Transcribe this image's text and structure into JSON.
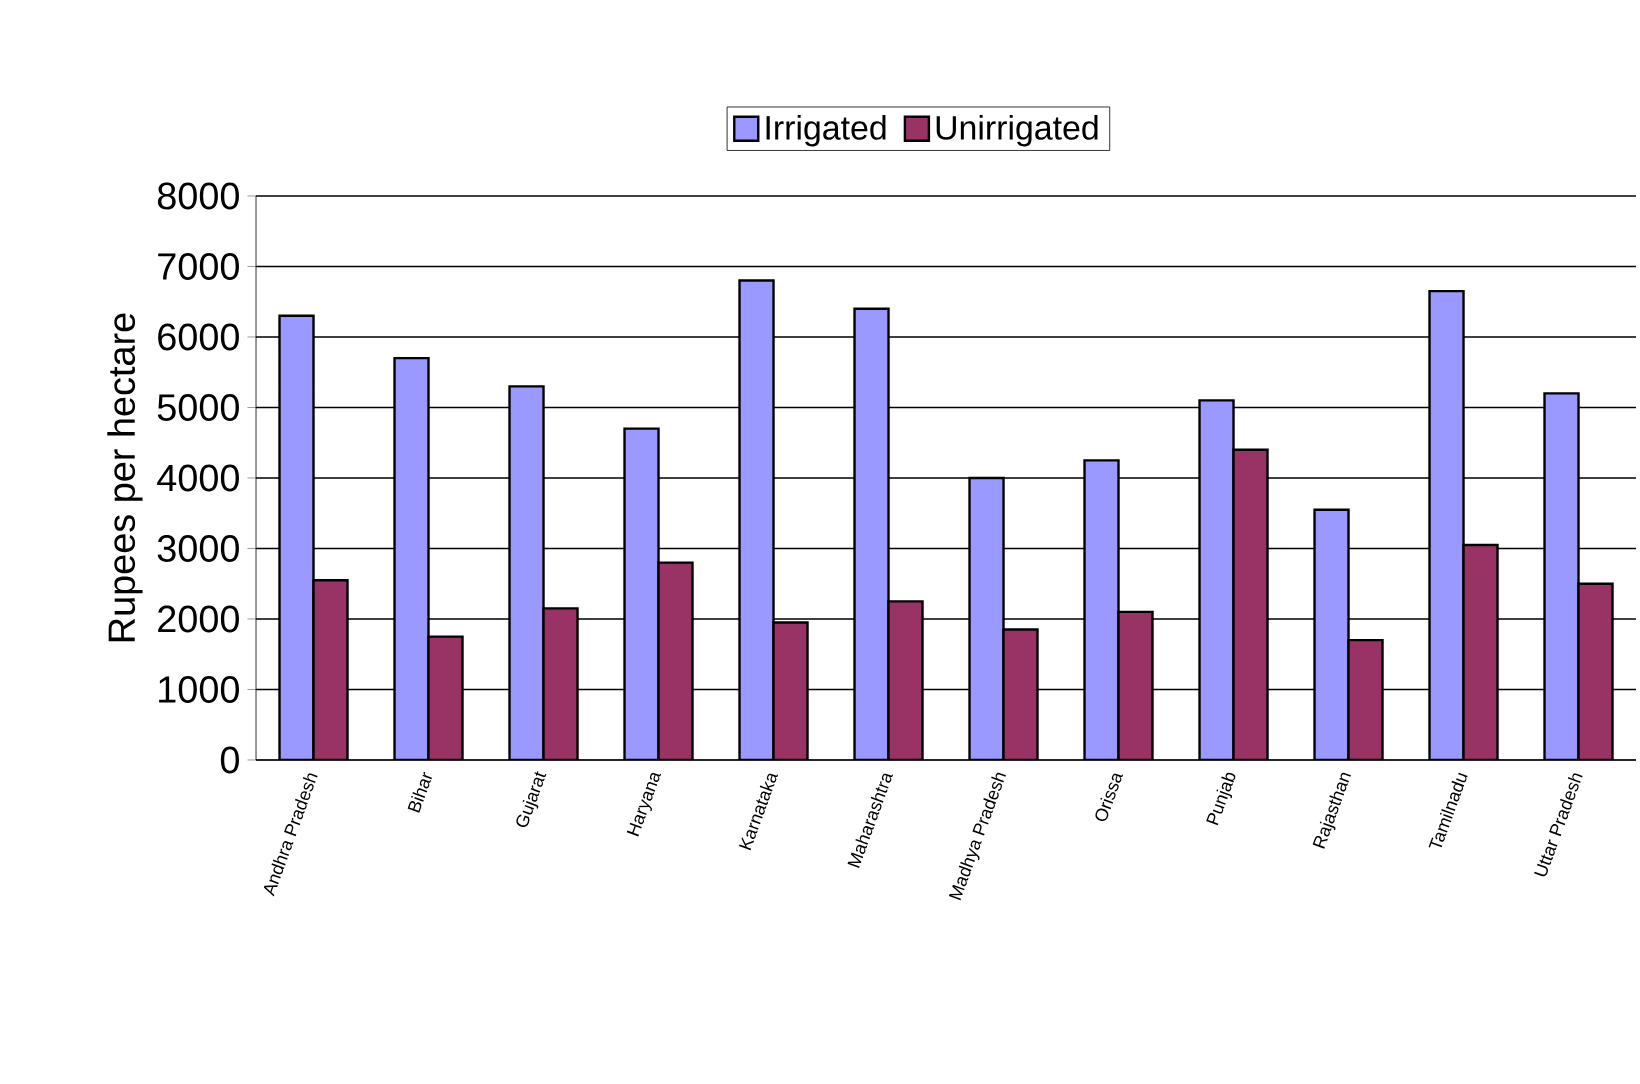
{
  "chart_data": {
    "type": "bar",
    "ylabel": "Rupees per hectare",
    "categories": [
      "Andhra Pradesh",
      "Bihar",
      "Gujarat",
      "Haryana",
      "Karnataka",
      "Maharashtra",
      "Madhya Pradesh",
      "Orissa",
      "Punjab",
      "Rajasthan",
      "Tamilnadu",
      "Uttar Pradesh"
    ],
    "series": [
      {
        "name": "Irrigated",
        "color": "#9999ff",
        "values": [
          6300,
          5700,
          5300,
          4700,
          6800,
          6400,
          4000,
          4250,
          5100,
          3550,
          6650,
          5200
        ]
      },
      {
        "name": "Unirrigated",
        "color": "#993366",
        "values": [
          2550,
          1750,
          2150,
          2800,
          1950,
          2250,
          1850,
          2100,
          4400,
          1700,
          3050,
          2500
        ]
      }
    ],
    "ylim": [
      0,
      8000
    ],
    "yticks": [
      0,
      1000,
      2000,
      3000,
      4000,
      5000,
      6000,
      7000,
      8000
    ],
    "grid": "y",
    "legend": "top"
  }
}
